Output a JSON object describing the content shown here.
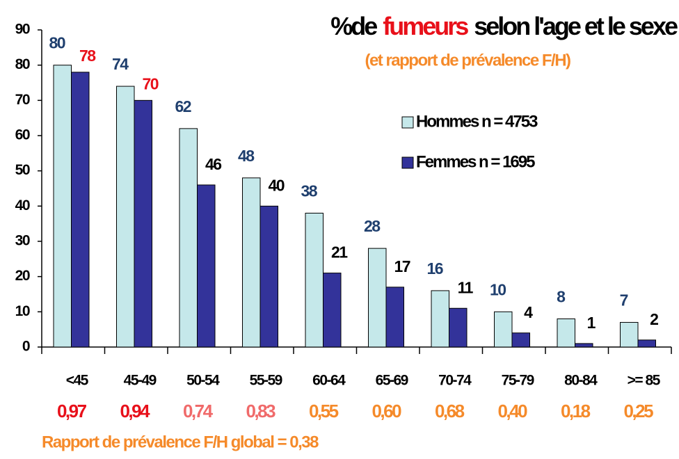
{
  "chart_data": {
    "type": "bar",
    "title_parts": [
      {
        "text": "%de",
        "color": "#000000"
      },
      {
        "text": "fumeurs",
        "color": "#e8101a"
      },
      {
        "text": "selon l'age et le sexe",
        "color": "#000000"
      }
    ],
    "subtitle": "(et rapport de prévalence F/H)",
    "categories": [
      "<45",
      "45-49",
      "50-54",
      "55-59",
      "60-64",
      "65-69",
      "70-74",
      "75-79",
      "80-84",
      ">= 85"
    ],
    "series": [
      {
        "name": "Hommes n = 4753",
        "color": "#c5e8ea",
        "values": [
          80,
          74,
          62,
          48,
          38,
          28,
          16,
          10,
          8,
          7
        ],
        "label_colors": [
          "#1f3f6e",
          "#1f3f6e",
          "#1f3f6e",
          "#1f3f6e",
          "#1f3f6e",
          "#1f3f6e",
          "#1f3f6e",
          "#1f3f6e",
          "#1f3f6e",
          "#1f3f6e"
        ]
      },
      {
        "name": "Femmes n = 1695",
        "color": "#33339a",
        "values": [
          78,
          70,
          46,
          40,
          21,
          17,
          11,
          4,
          1,
          2
        ],
        "label_colors": [
          "#e8101a",
          "#e8101a",
          "#000000",
          "#000000",
          "#000000",
          "#000000",
          "#000000",
          "#000000",
          "#000000",
          "#000000"
        ]
      }
    ],
    "ratios": {
      "values": [
        0.97,
        0.94,
        0.74,
        0.83,
        0.55,
        0.6,
        0.68,
        0.4,
        0.18,
        0.25
      ],
      "value_labels": [
        "0,97",
        "0,94",
        "0,74",
        "0,83",
        "0,55",
        "0,60",
        "0,68",
        "0,40",
        "0,18",
        "0,25"
      ],
      "colors": [
        "#e8101a",
        "#e8101a",
        "#f06a6a",
        "#f06a6a",
        "#f58a2a",
        "#f58a2a",
        "#f58a2a",
        "#f58a2a",
        "#f58a2a",
        "#f58a2a"
      ]
    },
    "footer": "Rapport de prévalence F/H global = 0,38",
    "ylim": [
      0,
      90
    ],
    "yticks": [
      0,
      10,
      20,
      30,
      40,
      50,
      60,
      70,
      80,
      90
    ]
  }
}
